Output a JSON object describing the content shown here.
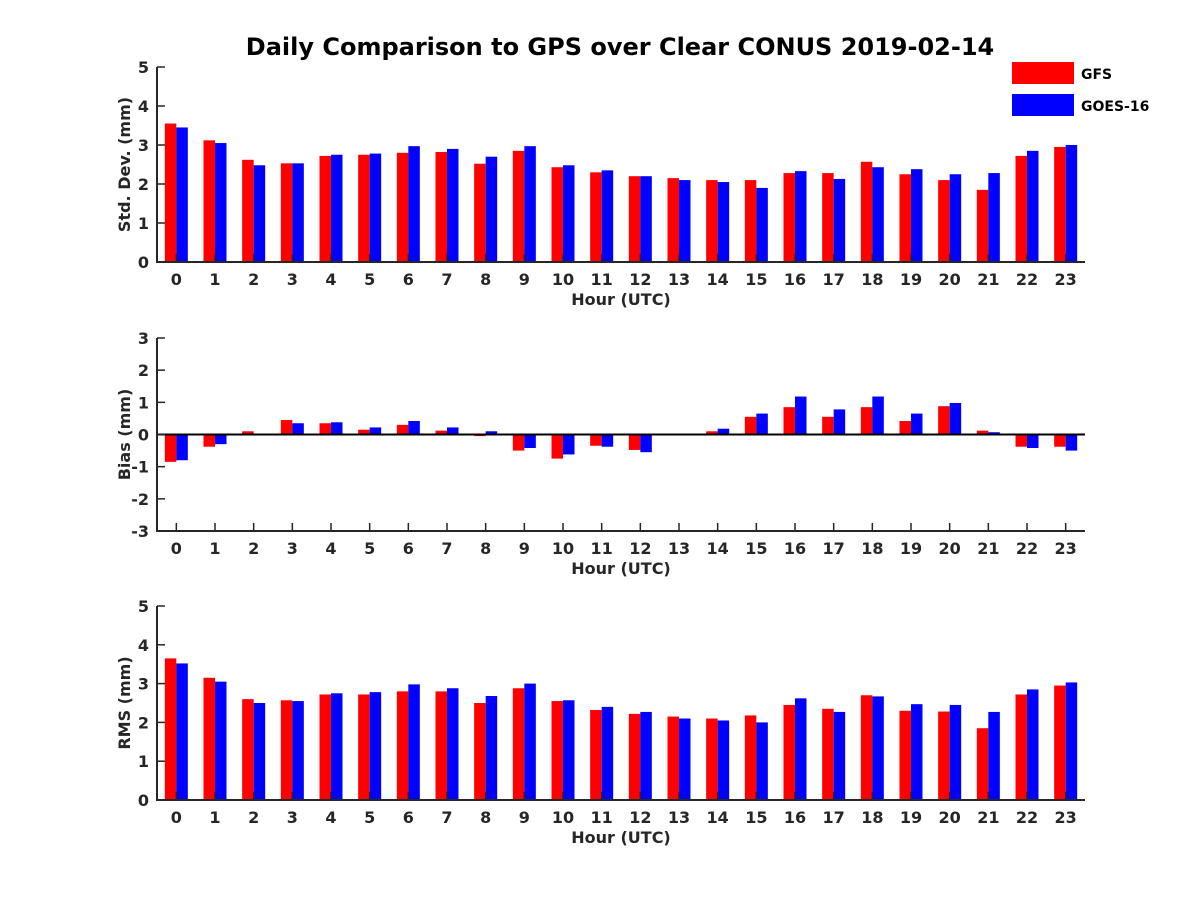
{
  "title": "Daily Comparison to GPS over Clear CONUS 2019-02-14",
  "legend": [
    {
      "name": "GFS",
      "color": "#ff0000"
    },
    {
      "name": "GOES-16",
      "color": "#0000ff"
    }
  ],
  "chart_data": [
    {
      "type": "bar",
      "ylabel": "Std. Dev. (mm)",
      "xlabel": "Hour (UTC)",
      "ylim": [
        0,
        5
      ],
      "yticks": [
        "0",
        "1",
        "2",
        "3",
        "4",
        "5"
      ],
      "categories": [
        "0",
        "1",
        "2",
        "3",
        "4",
        "5",
        "6",
        "7",
        "8",
        "9",
        "10",
        "11",
        "12",
        "13",
        "14",
        "15",
        "16",
        "17",
        "18",
        "19",
        "20",
        "21",
        "22",
        "23"
      ],
      "series": [
        {
          "name": "GFS",
          "color": "#ff0000",
          "values": [
            3.55,
            3.12,
            2.62,
            2.53,
            2.72,
            2.75,
            2.8,
            2.82,
            2.52,
            2.85,
            2.43,
            2.3,
            2.2,
            2.15,
            2.1,
            2.1,
            2.28,
            2.28,
            2.57,
            2.25,
            2.1,
            1.85,
            2.72,
            2.95
          ]
        },
        {
          "name": "GOES-16",
          "color": "#0000ff",
          "values": [
            3.45,
            3.05,
            2.48,
            2.53,
            2.75,
            2.78,
            2.97,
            2.9,
            2.7,
            2.97,
            2.48,
            2.35,
            2.2,
            2.1,
            2.05,
            1.9,
            2.33,
            2.13,
            2.43,
            2.38,
            2.25,
            2.28,
            2.85,
            3.0
          ]
        }
      ]
    },
    {
      "type": "bar",
      "ylabel": "Bias (mm)",
      "xlabel": "Hour (UTC)",
      "ylim": [
        -3,
        3
      ],
      "yticks": [
        "-3",
        "-2",
        "-1",
        "0",
        "1",
        "2",
        "3"
      ],
      "categories": [
        "0",
        "1",
        "2",
        "3",
        "4",
        "5",
        "6",
        "7",
        "8",
        "9",
        "10",
        "11",
        "12",
        "13",
        "14",
        "15",
        "16",
        "17",
        "18",
        "19",
        "20",
        "21",
        "22",
        "23"
      ],
      "series": [
        {
          "name": "GFS",
          "color": "#ff0000",
          "values": [
            -0.85,
            -0.38,
            0.1,
            0.45,
            0.35,
            0.15,
            0.3,
            0.12,
            -0.05,
            -0.5,
            -0.75,
            -0.35,
            -0.48,
            0.0,
            0.1,
            0.55,
            0.85,
            0.55,
            0.85,
            0.42,
            0.88,
            0.12,
            -0.38,
            -0.38
          ]
        },
        {
          "name": "GOES-16",
          "color": "#0000ff",
          "values": [
            -0.8,
            -0.3,
            0.03,
            0.35,
            0.38,
            0.22,
            0.42,
            0.22,
            0.1,
            -0.42,
            -0.62,
            -0.38,
            -0.55,
            0.0,
            0.18,
            0.65,
            1.18,
            0.78,
            1.18,
            0.65,
            0.98,
            0.07,
            -0.42,
            -0.5
          ]
        }
      ]
    },
    {
      "type": "bar",
      "ylabel": "RMS (mm)",
      "xlabel": "Hour (UTC)",
      "ylim": [
        0,
        5
      ],
      "yticks": [
        "0",
        "1",
        "2",
        "3",
        "4",
        "5"
      ],
      "categories": [
        "0",
        "1",
        "2",
        "3",
        "4",
        "5",
        "6",
        "7",
        "8",
        "9",
        "10",
        "11",
        "12",
        "13",
        "14",
        "15",
        "16",
        "17",
        "18",
        "19",
        "20",
        "21",
        "22",
        "23"
      ],
      "series": [
        {
          "name": "GFS",
          "color": "#ff0000",
          "values": [
            3.65,
            3.15,
            2.6,
            2.57,
            2.72,
            2.72,
            2.8,
            2.8,
            2.5,
            2.88,
            2.55,
            2.32,
            2.22,
            2.15,
            2.1,
            2.18,
            2.45,
            2.35,
            2.7,
            2.3,
            2.28,
            1.85,
            2.72,
            2.95
          ]
        },
        {
          "name": "GOES-16",
          "color": "#0000ff",
          "values": [
            3.52,
            3.05,
            2.5,
            2.55,
            2.75,
            2.78,
            2.98,
            2.88,
            2.68,
            3.0,
            2.57,
            2.4,
            2.27,
            2.1,
            2.05,
            2.0,
            2.62,
            2.27,
            2.67,
            2.47,
            2.45,
            2.27,
            2.85,
            3.03
          ]
        }
      ]
    }
  ]
}
